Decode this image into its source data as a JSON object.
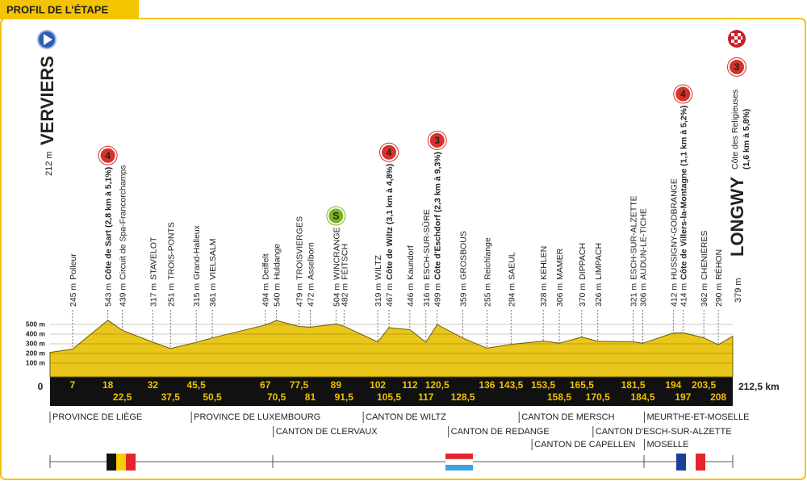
{
  "header": {
    "title": "PROFIL DE L'ÉTAPE"
  },
  "chart_data": {
    "type": "elevation-profile",
    "start": {
      "km": 0,
      "altitude": {
        "value": 212,
        "label": "212 m"
      },
      "name": "VERVIERS"
    },
    "finish": {
      "km": {
        "value": 212.5,
        "label": "212,5 km"
      },
      "altitude": {
        "value": 379,
        "label": "379 m"
      },
      "name": "LONGWY",
      "climb": "Côte des Religieuses",
      "climb_detail": "(1,6 km à 5,8%)",
      "category": 3
    },
    "waypoints": [
      {
        "km": 7,
        "altitude": {
          "value": 245,
          "label": "245 m"
        },
        "name": "Polleur"
      },
      {
        "km": 18,
        "altitude": {
          "value": 543,
          "label": "543 m"
        },
        "name": "Côte de Sart (2,8 km à 5,1%)",
        "category": 4
      },
      {
        "km": {
          "value": 22.5,
          "label": "22,5"
        },
        "altitude": {
          "value": 439,
          "label": "439 m"
        },
        "name": "Circuit de Spa-Francorchamps"
      },
      {
        "km": 32,
        "altitude": {
          "value": 317,
          "label": "317 m"
        },
        "name": "STAVELOT"
      },
      {
        "km": {
          "value": 37.5,
          "label": "37,5"
        },
        "altitude": {
          "value": 251,
          "label": "251 m"
        },
        "name": "TROIS-PONTS"
      },
      {
        "km": {
          "value": 45.5,
          "label": "45,5"
        },
        "altitude": {
          "value": 315,
          "label": "315 m"
        },
        "name": "Grand-Halleux"
      },
      {
        "km": {
          "value": 50.5,
          "label": "50,5"
        },
        "altitude": {
          "value": 361,
          "label": "361 m"
        },
        "name": "VIELSALM"
      },
      {
        "km": 67,
        "altitude": {
          "value": 494,
          "label": "494 m"
        },
        "name": "Deiffelt"
      },
      {
        "km": {
          "value": 70.5,
          "label": "70,5"
        },
        "altitude": {
          "value": 540,
          "label": "540 m"
        },
        "name": "Huldange"
      },
      {
        "km": {
          "value": 77.5,
          "label": "77,5"
        },
        "altitude": {
          "value": 479,
          "label": "479 m"
        },
        "name": "TROISVIERGES"
      },
      {
        "km": 81,
        "altitude": {
          "value": 472,
          "label": "472 m"
        },
        "name": "Asselborn"
      },
      {
        "km": 89,
        "altitude": {
          "value": 504,
          "label": "504 m"
        },
        "name": "WINCRANGE",
        "sprint": "S"
      },
      {
        "km": {
          "value": 91.5,
          "label": "91,5"
        },
        "altitude": {
          "value": 482,
          "label": "482 m"
        },
        "name": "FÉITSCH"
      },
      {
        "km": 102,
        "altitude": {
          "value": 319,
          "label": "319 m"
        },
        "name": "WILTZ"
      },
      {
        "km": {
          "value": 105.5,
          "label": "105,5"
        },
        "altitude": {
          "value": 467,
          "label": "467 m"
        },
        "name": "Côte de Wiltz (3,1 km à 4,8%)",
        "category": 4
      },
      {
        "km": 112,
        "altitude": {
          "value": 446,
          "label": "446 m"
        },
        "name": "Kaundorf"
      },
      {
        "km": 117,
        "altitude": {
          "value": 316,
          "label": "316 m"
        },
        "name": "ESCH-SUR-SÛRE"
      },
      {
        "km": {
          "value": 120.5,
          "label": "120,5"
        },
        "altitude": {
          "value": 499,
          "label": "499 m"
        },
        "name": "Côte d'Eschdorf (2,3 km à 9,3%)",
        "category": 3
      },
      {
        "km": {
          "value": 128.5,
          "label": "128,5"
        },
        "altitude": {
          "value": 359,
          "label": "359 m"
        },
        "name": "GROSBOUS"
      },
      {
        "km": 136,
        "altitude": {
          "value": 255,
          "label": "255 m"
        },
        "name": "Reichlange"
      },
      {
        "km": {
          "value": 143.5,
          "label": "143,5"
        },
        "altitude": {
          "value": 294,
          "label": "294 m"
        },
        "name": "SAEUL"
      },
      {
        "km": {
          "value": 153.5,
          "label": "153,5"
        },
        "altitude": {
          "value": 328,
          "label": "328 m"
        },
        "name": "KEHLEN"
      },
      {
        "km": {
          "value": 158.5,
          "label": "158,5"
        },
        "altitude": {
          "value": 306,
          "label": "306 m"
        },
        "name": "MAMER"
      },
      {
        "km": {
          "value": 165.5,
          "label": "165,5"
        },
        "altitude": {
          "value": 370,
          "label": "370 m"
        },
        "name": "DIPPACH"
      },
      {
        "km": {
          "value": 170.5,
          "label": "170,5"
        },
        "altitude": {
          "value": 326,
          "label": "326 m"
        },
        "name": "LIMPACH"
      },
      {
        "km": {
          "value": 181.5,
          "label": "181,5"
        },
        "altitude": {
          "value": 321,
          "label": "321 m"
        },
        "name": "ESCH-SUR-ALZETTE"
      },
      {
        "km": {
          "value": 184.5,
          "label": "184,5"
        },
        "altitude": {
          "value": 306,
          "label": "306 m"
        },
        "name": "AUDUN-LE-TICHE"
      },
      {
        "km": 194,
        "altitude": {
          "value": 412,
          "label": "412 m"
        },
        "name": "HUSSIGNY-GODBRANGE"
      },
      {
        "km": 197,
        "altitude": {
          "value": 414,
          "label": "414 m"
        },
        "name": "Côte de Villers-la-Montagne (1,1 km à 5,2%)",
        "category": 4
      },
      {
        "km": {
          "value": 203.5,
          "label": "203,5"
        },
        "altitude": {
          "value": 362,
          "label": "362 m"
        },
        "name": "CHENIÈRES"
      },
      {
        "km": 208,
        "altitude": {
          "value": 290,
          "label": "290 m"
        },
        "name": "RÉHON"
      }
    ],
    "ylim": [
      0,
      500
    ],
    "yticks": [
      {
        "value": 500,
        "label": "500 m"
      },
      {
        "value": 400,
        "label": "400 m"
      },
      {
        "value": 300,
        "label": "300 m"
      },
      {
        "value": 200,
        "label": "200 m"
      },
      {
        "value": 100,
        "label": "100 m"
      }
    ],
    "color": "#e9c61a",
    "regions": [
      {
        "name": "PROVINCE DE LIÈGE",
        "km": 0
      },
      {
        "name": "PROVINCE DE LUXEMBOURG",
        "km": 44
      },
      {
        "name": "CANTON DE CLERVAUX",
        "km": 69.5
      },
      {
        "name": "CANTON DE WILTZ",
        "km": 97.5
      },
      {
        "name": "CANTON DE REDANGE",
        "km": 124
      },
      {
        "name": "CANTON DE MERSCH",
        "km": 146
      },
      {
        "name": "CANTON DE CAPELLEN",
        "km": 150
      },
      {
        "name": "CANTON D'ESCH-SUR-ALZETTE",
        "km": 169
      },
      {
        "name": "MEURTHE-ET-MOSELLE",
        "km": 185
      },
      {
        "name": "MOSELLE",
        "km": 185
      }
    ]
  }
}
